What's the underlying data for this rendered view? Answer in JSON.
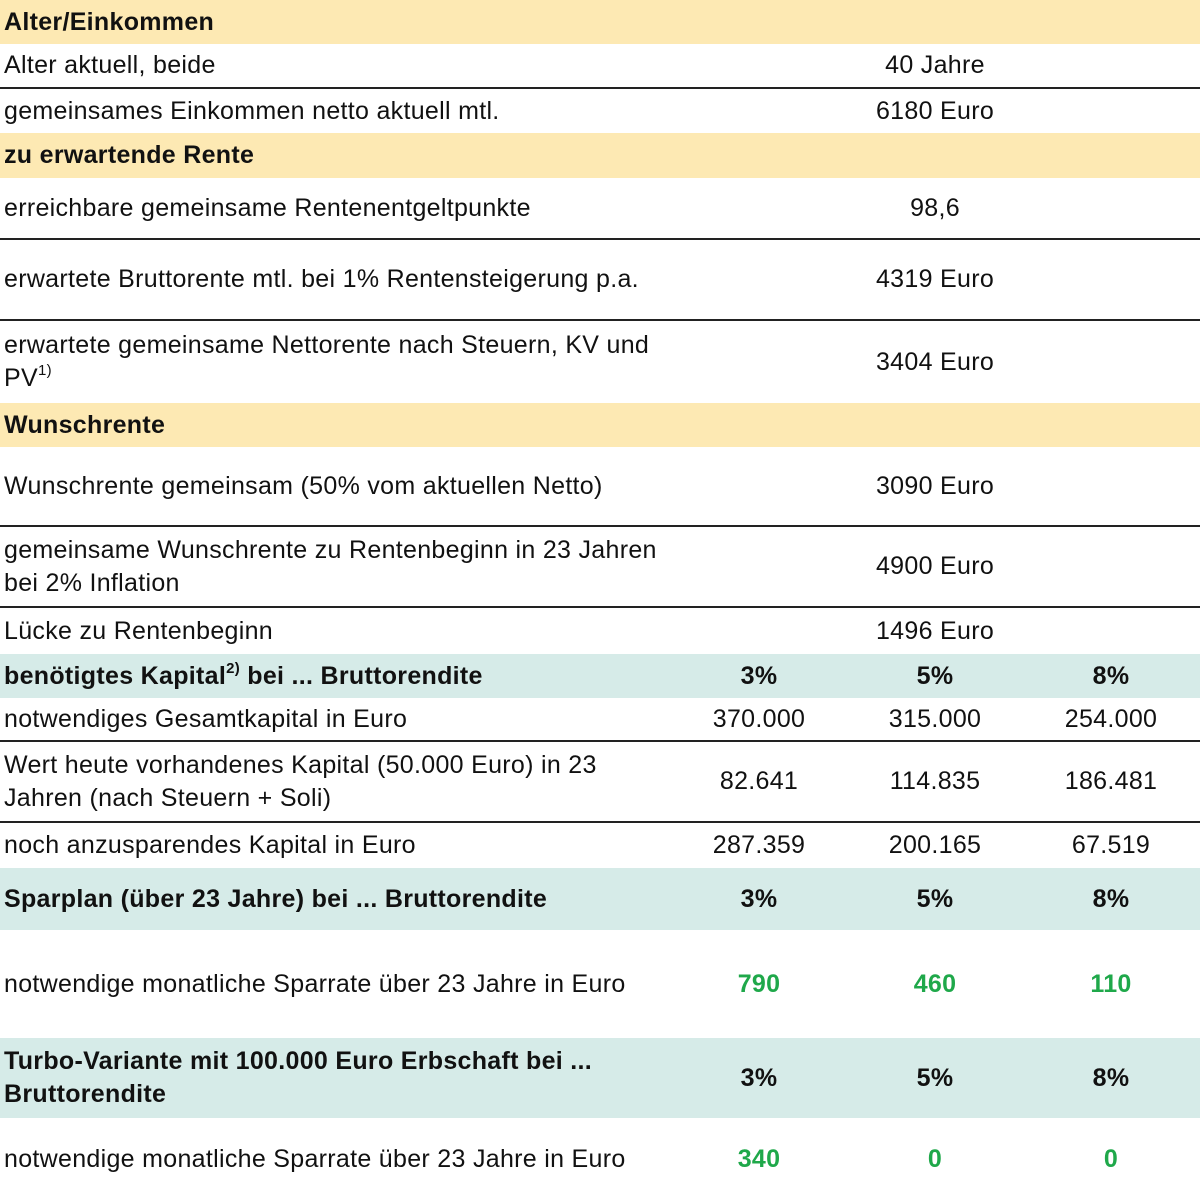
{
  "colors": {
    "section_yellow": "#fde9b3",
    "section_teal": "#d6ebe8",
    "highlight_green": "#1fa84a"
  },
  "rows": [
    {
      "type": "section-yellow",
      "label": "Alter/Einkommen"
    },
    {
      "type": "single",
      "label": "Alter aktuell, beide",
      "value": "40 Jahre"
    },
    {
      "type": "single",
      "label": "gemeinsames Einkommen netto aktuell mtl.",
      "value": "6180 Euro"
    },
    {
      "type": "section-yellow",
      "label": "zu erwartende Rente"
    },
    {
      "type": "single",
      "label": "erreichbare gemeinsame Rentenentgeltpunkte",
      "value": "98,6"
    },
    {
      "type": "single",
      "label": "erwartete Bruttorente mtl. bei 1% Rentensteigerung p.a.",
      "value": "4319 Euro"
    },
    {
      "type": "single",
      "label": "erwartete gemeinsame Nettorente nach Steuern, KV und PV",
      "sup": "1)",
      "value": "3404 Euro"
    },
    {
      "type": "section-yellow",
      "label": "Wunschrente"
    },
    {
      "type": "single",
      "label": "Wunschrente gemeinsam (50% vom aktuellen Netto)",
      "value": "3090 Euro"
    },
    {
      "type": "single",
      "label": "gemeinsame Wunschrente zu Rentenbeginn in 23 Jahren bei 2% Inflation",
      "value": "4900 Euro"
    },
    {
      "type": "single",
      "label": "Lücke zu Rentenbeginn",
      "value": "1496 Euro"
    },
    {
      "type": "section-teal",
      "label": "benötigtes Kapital",
      "sup": "2)",
      "label_suffix": " bei ... Bruttorendite",
      "values": [
        "3%",
        "5%",
        "8%"
      ]
    },
    {
      "type": "triple",
      "label": "notwendiges Gesamtkapital in Euro",
      "values": [
        "370.000",
        "315.000",
        "254.000"
      ]
    },
    {
      "type": "triple",
      "label": "Wert heute vorhandenes Kapital (50.000 Euro) in 23 Jahren (nach Steuern + Soli)",
      "values": [
        "82.641",
        "114.835",
        "186.481"
      ]
    },
    {
      "type": "triple",
      "label": "noch anzusparendes Kapital in Euro",
      "values": [
        "287.359",
        "200.165",
        "67.519"
      ]
    },
    {
      "type": "section-teal",
      "label": "Sparplan (über 23 Jahre) bei ... Bruttorendite",
      "values": [
        "3%",
        "5%",
        "8%"
      ]
    },
    {
      "type": "triple-green",
      "label": "notwendige monatliche Sparrate über 23 Jahre in Euro",
      "values": [
        "790",
        "460",
        "110"
      ]
    },
    {
      "type": "section-teal",
      "label": "Turbo-Variante mit 100.000 Euro Erbschaft bei ... Bruttorendite",
      "values": [
        "3%",
        "5%",
        "8%"
      ]
    },
    {
      "type": "triple-green",
      "label": "notwendige monatliche Sparrate über 23 Jahre in Euro",
      "values": [
        "340",
        "0",
        "0"
      ]
    }
  ]
}
